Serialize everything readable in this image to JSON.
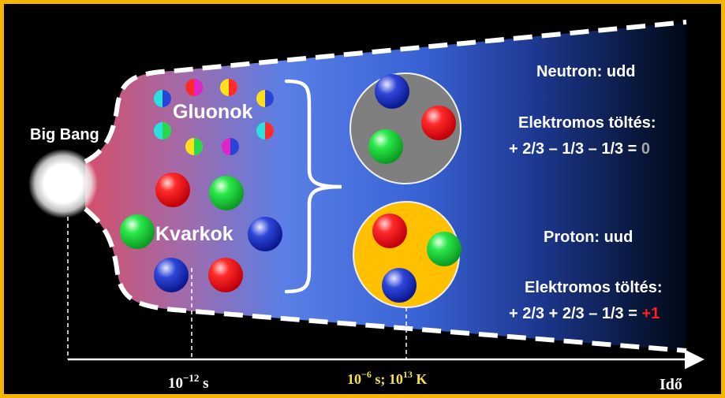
{
  "labels": {
    "big_bang": "Big Bang",
    "gluons": "Gluonok",
    "quarks": "Kvarkok",
    "neutron": "Neutron: udd",
    "neutron_charge_label": "Elektromos töltés:",
    "neutron_charge_expr": "+ 2/3 – 1/3 – 1/3 = ",
    "neutron_charge_result": "0",
    "proton": "Proton: uud",
    "proton_charge_label": "Elektromos töltés:",
    "proton_charge_expr": "+ 2/3 + 2/3 – 1/3 = ",
    "proton_charge_result": "+1"
  },
  "axis": {
    "time1_base": "10",
    "time1_exp": "−12",
    "time1_unit": " s",
    "time2_base": "10",
    "time2_exp": "−6",
    "time2_mid": " s; 10",
    "time2_exp2": "13",
    "time2_unit": " K",
    "end_label": "Idő"
  },
  "colors": {
    "frame": "#f4b400",
    "background": "#000000",
    "quark_red": "#e8151b",
    "quark_green": "#1fd43a",
    "quark_blue": "#1d2fb8",
    "neutron_fill": "#7f7f7f",
    "proton_fill": "#ffc000",
    "time2_label": "#f7e34a",
    "neutron_result": "#a6a6a6",
    "proton_result": "#ff1f1f"
  }
}
